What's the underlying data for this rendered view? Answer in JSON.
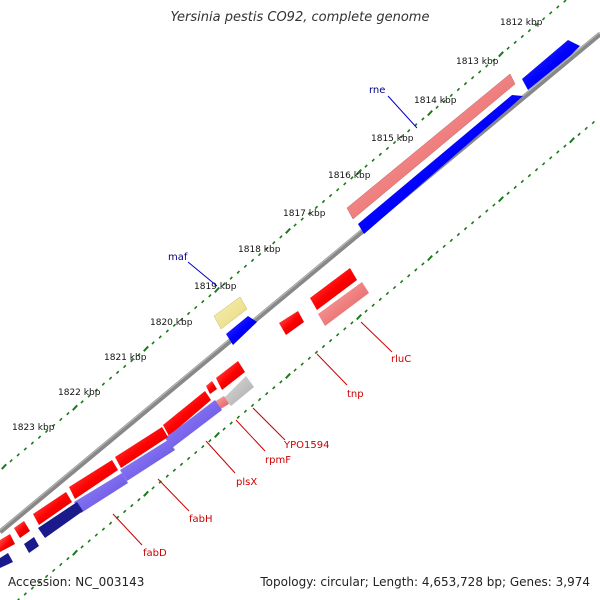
{
  "title": "Yersinia pestis CO92, complete genome",
  "footer": {
    "accession": "Accession: NC_003143",
    "summary": "Topology: circular; Length: 4,653,728 bp; Genes: 3,974"
  },
  "colors": {
    "backbone": "#888888",
    "ticks": "#1a7a1a",
    "cds_red": "#ff0000",
    "cds_red_light": "#f08080",
    "cds_blue": "#0000ff",
    "cds_purple": "#7b68ee",
    "cds_navy": "#1a1a8c",
    "yellow": "#f0e68c",
    "gray": "#c0c0c0",
    "label_blue": "#00008b",
    "label_red": "#cc0000"
  },
  "ticks": [
    {
      "label": "1812 kbp"
    },
    {
      "label": "1813 kbp"
    },
    {
      "label": "1814 kbp"
    },
    {
      "label": "1815 kbp"
    },
    {
      "label": "1816 kbp"
    },
    {
      "label": "1817 kbp"
    },
    {
      "label": "1818 kbp"
    },
    {
      "label": "1819 kbp"
    },
    {
      "label": "1820 kbp"
    },
    {
      "label": "1821 kbp"
    },
    {
      "label": "1822 kbp"
    },
    {
      "label": "1823 kbp"
    }
  ],
  "gene_labels": [
    {
      "name": "rne",
      "color": "label_blue"
    },
    {
      "name": "maf",
      "color": "label_blue"
    },
    {
      "name": "rluC",
      "color": "label_red"
    },
    {
      "name": "tnp",
      "color": "label_red"
    },
    {
      "name": "YPO1594",
      "color": "label_red"
    },
    {
      "name": "rpmF",
      "color": "label_red"
    },
    {
      "name": "plsX",
      "color": "label_red"
    },
    {
      "name": "fabH",
      "color": "label_red"
    },
    {
      "name": "fabD",
      "color": "label_red"
    }
  ]
}
